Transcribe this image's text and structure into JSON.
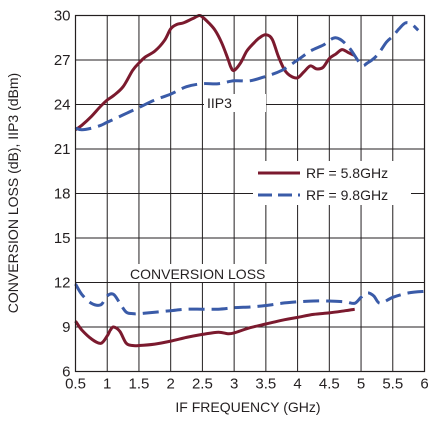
{
  "chart_data": {
    "type": "line",
    "xlabel": "IF FREQUENCY (GHz)",
    "ylabel": "CONVERSION LOSS (dB), IIP3 (dBm)",
    "xlim": [
      0.5,
      6
    ],
    "ylim": [
      6,
      30
    ],
    "x_ticks": [
      "0.5",
      "1",
      "1.5",
      "2",
      "2.5",
      "3",
      "3.5",
      "4",
      "4.5",
      "5",
      "5.5",
      "6"
    ],
    "y_ticks": [
      "6",
      "9",
      "12",
      "15",
      "18",
      "21",
      "24",
      "27",
      "30"
    ],
    "grid": true,
    "legend": {
      "placement": "right-middle",
      "entries": [
        "RF = 5.8GHz",
        "RF = 9.8GHz"
      ]
    },
    "annotations": [
      {
        "text": "IIP3"
      },
      {
        "text": "CONVERSION LOSS"
      }
    ],
    "series": [
      {
        "name": "RF = 5.8GHz",
        "metric": "IIP3",
        "color": "#7b1a2e",
        "dash": "solid",
        "x": [
          0.5,
          0.6,
          0.75,
          0.9,
          1.0,
          1.1,
          1.25,
          1.4,
          1.5,
          1.6,
          1.75,
          1.9,
          2.0,
          2.1,
          2.2,
          2.35,
          2.45,
          2.5,
          2.6,
          2.7,
          2.8,
          2.9,
          2.95,
          3.0,
          3.1,
          3.2,
          3.3,
          3.4,
          3.5,
          3.6,
          3.7,
          3.8,
          3.9,
          4.0,
          4.1,
          4.2,
          4.3,
          4.4,
          4.5,
          4.6,
          4.7,
          4.8,
          4.9
        ],
        "y": [
          22.3,
          22.6,
          23.2,
          23.9,
          24.3,
          24.6,
          25.2,
          26.3,
          26.8,
          27.2,
          27.6,
          28.3,
          29.1,
          29.4,
          29.5,
          29.8,
          30.0,
          29.9,
          29.5,
          29.0,
          28.2,
          27.1,
          26.5,
          26.3,
          26.8,
          27.6,
          28.1,
          28.5,
          28.7,
          28.4,
          27.2,
          26.3,
          25.9,
          25.8,
          26.2,
          26.6,
          26.4,
          26.5,
          27.1,
          27.4,
          27.7,
          27.5,
          27.3
        ]
      },
      {
        "name": "RF = 9.8GHz",
        "metric": "IIP3",
        "color": "#3a5ba8",
        "dash": "dashed",
        "x": [
          0.5,
          0.6,
          0.75,
          0.9,
          1.0,
          1.25,
          1.5,
          1.75,
          2.0,
          2.25,
          2.5,
          2.75,
          3.0,
          3.25,
          3.5,
          3.75,
          4.0,
          4.2,
          4.4,
          4.6,
          4.8,
          5.0,
          5.1,
          5.25,
          5.4,
          5.5,
          5.6,
          5.7,
          5.8,
          5.9
        ],
        "y": [
          22.4,
          22.3,
          22.4,
          22.6,
          22.8,
          23.3,
          23.8,
          24.3,
          24.7,
          25.2,
          25.4,
          25.4,
          25.6,
          25.6,
          25.9,
          26.3,
          27.0,
          27.6,
          28.0,
          28.5,
          27.9,
          26.7,
          26.8,
          27.3,
          28.2,
          28.6,
          29.1,
          29.5,
          29.4,
          29.0
        ]
      },
      {
        "name": "RF = 5.8GHz",
        "metric": "Conversion Loss",
        "color": "#7b1a2e",
        "dash": "solid",
        "x": [
          0.5,
          0.6,
          0.75,
          0.9,
          1.0,
          1.05,
          1.1,
          1.2,
          1.3,
          1.4,
          1.5,
          1.75,
          2.0,
          2.25,
          2.5,
          2.75,
          2.9,
          3.0,
          3.25,
          3.5,
          3.75,
          4.0,
          4.25,
          4.5,
          4.75,
          4.9
        ],
        "y": [
          9.4,
          8.8,
          8.2,
          7.9,
          8.4,
          8.8,
          9.0,
          8.7,
          7.9,
          7.75,
          7.75,
          7.85,
          8.05,
          8.3,
          8.5,
          8.65,
          8.55,
          8.6,
          8.95,
          9.2,
          9.45,
          9.65,
          9.85,
          9.95,
          10.1,
          10.2
        ]
      },
      {
        "name": "RF = 9.8GHz",
        "metric": "Conversion Loss",
        "color": "#3a5ba8",
        "dash": "dashed",
        "x": [
          0.5,
          0.6,
          0.75,
          0.9,
          1.0,
          1.1,
          1.2,
          1.3,
          1.4,
          1.5,
          1.75,
          2.0,
          2.25,
          2.5,
          2.75,
          3.0,
          3.25,
          3.5,
          3.75,
          4.0,
          4.25,
          4.5,
          4.75,
          4.9,
          5.0,
          5.1,
          5.2,
          5.3,
          5.5,
          5.75,
          6.0
        ],
        "y": [
          11.9,
          11.2,
          10.6,
          10.5,
          11.1,
          11.2,
          10.6,
          10.0,
          9.9,
          9.9,
          10.0,
          10.1,
          10.2,
          10.2,
          10.2,
          10.3,
          10.35,
          10.45,
          10.6,
          10.7,
          10.75,
          10.75,
          10.7,
          10.6,
          11.0,
          11.3,
          11.1,
          10.6,
          11.0,
          11.3,
          11.4
        ]
      }
    ]
  }
}
